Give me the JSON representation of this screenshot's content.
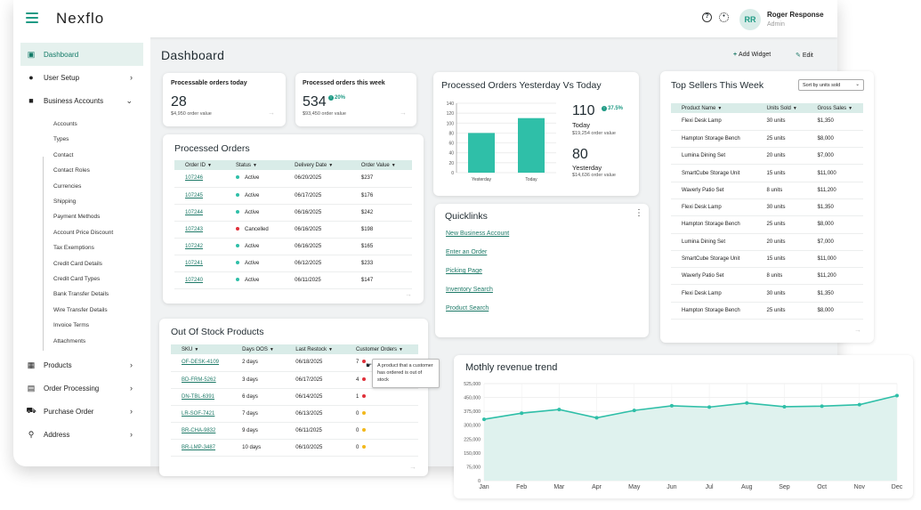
{
  "app": {
    "brand": "Nexflo",
    "user_name": "Roger Response",
    "user_role": "Admin",
    "user_initials": "RR"
  },
  "sidebar": {
    "items": [
      {
        "label": "Dashboard"
      },
      {
        "label": "User Setup"
      },
      {
        "label": "Business Accounts"
      },
      {
        "label": "Products"
      },
      {
        "label": "Order Processing"
      },
      {
        "label": "Purchase Order"
      },
      {
        "label": "Address"
      }
    ],
    "sub_items": [
      "Accounts",
      "Types",
      "Contact",
      "Contact Roles",
      "Currencies",
      "Shipping",
      "Payment Methods",
      "Account Price Discount",
      "Tax Exemptions",
      "Credit Card Details",
      "Credit Card Types",
      "Bank Transfer Details",
      "Wire Transfer Details",
      "Invoice Terms",
      "Attachments"
    ]
  },
  "header": {
    "title": "Dashboard",
    "add_widget": "Add Widget",
    "edit": "Edit"
  },
  "processable": {
    "label": "Processable orders today",
    "value": "28",
    "sub": "$4,950 order value"
  },
  "processed_week": {
    "label": "Processed orders this week",
    "value": "534",
    "change": "20%",
    "sub": "$93,450 order value"
  },
  "yesterday_today": {
    "title": "Processed Orders Yesterday Vs Today",
    "today_value": "110",
    "today_change": "37.5%",
    "today_label": "Today",
    "today_sub": "$19,254 order value",
    "yesterday_value": "80",
    "yesterday_label": "Yesterday",
    "yesterday_sub": "$14,636 order value"
  },
  "processed_orders": {
    "title": "Processed Orders",
    "columns": [
      "Order ID",
      "Status",
      "Delivery Date",
      "Order Value"
    ],
    "rows": [
      {
        "id": "107246",
        "status": "Active",
        "date": "06/20/2025",
        "value": "$237"
      },
      {
        "id": "107245",
        "status": "Active",
        "date": "06/17/2025",
        "value": "$176"
      },
      {
        "id": "107244",
        "status": "Active",
        "date": "06/16/2025",
        "value": "$242"
      },
      {
        "id": "107243",
        "status": "Cancelled",
        "date": "06/16/2025",
        "value": "$198"
      },
      {
        "id": "107242",
        "status": "Active",
        "date": "06/16/2025",
        "value": "$165"
      },
      {
        "id": "107241",
        "status": "Active",
        "date": "06/12/2025",
        "value": "$233"
      },
      {
        "id": "107240",
        "status": "Active",
        "date": "06/11/2025",
        "value": "$147"
      }
    ]
  },
  "quicklinks": {
    "title": "Quicklinks",
    "links": [
      "New Business Account",
      "Enter an Order",
      "Picking Page",
      "Inventory Search",
      "Product Search"
    ]
  },
  "top_sellers": {
    "title": "Top Sellers This Week",
    "sort_label": "Sort by units sold",
    "columns": [
      "Product Name",
      "Units Sold",
      "Gross Sales"
    ],
    "rows": [
      {
        "name": "Flexi Desk Lamp",
        "units": "30 units",
        "sales": "$1,350"
      },
      {
        "name": "Hampton Storage Bench",
        "units": "25 units",
        "sales": "$8,000"
      },
      {
        "name": "Lumina Dining Set",
        "units": "20 units",
        "sales": "$7,000"
      },
      {
        "name": "SmartCube Storage Unit",
        "units": "15 units",
        "sales": "$11,000"
      },
      {
        "name": "Waverly Patio Set",
        "units": "8 units",
        "sales": "$11,200"
      },
      {
        "name": "Flexi Desk Lamp",
        "units": "30 units",
        "sales": "$1,350"
      },
      {
        "name": "Hampton Storage Bench",
        "units": "25 units",
        "sales": "$8,000"
      },
      {
        "name": "Lumina Dining Set",
        "units": "20 units",
        "sales": "$7,000"
      },
      {
        "name": "SmartCube Storage Unit",
        "units": "15 units",
        "sales": "$11,000"
      },
      {
        "name": "Waverly Patio Set",
        "units": "8 units",
        "sales": "$11,200"
      },
      {
        "name": "Flexi Desk Lamp",
        "units": "30 units",
        "sales": "$1,350"
      },
      {
        "name": "Hampton Storage Bench",
        "units": "25 units",
        "sales": "$8,000"
      }
    ]
  },
  "out_of_stock": {
    "title": "Out Of Stock Products",
    "columns": [
      "SKU",
      "Days OOS",
      "Last Restock",
      "Customer Orders"
    ],
    "rows": [
      {
        "sku": "OF-DESK-4109",
        "days": "2 days",
        "restock": "06/18/2025",
        "orders": "7",
        "level": "red"
      },
      {
        "sku": "BD-FRM-5262",
        "days": "3 days",
        "restock": "06/17/2025",
        "orders": "4",
        "level": "red"
      },
      {
        "sku": "DN-TBL-6391",
        "days": "6 days",
        "restock": "06/14/2025",
        "orders": "1",
        "level": "red"
      },
      {
        "sku": "LR-SOF-7421",
        "days": "7 days",
        "restock": "06/13/2025",
        "orders": "0",
        "level": "yellow"
      },
      {
        "sku": "BR-CHA-9832",
        "days": "9 days",
        "restock": "06/11/2025",
        "orders": "0",
        "level": "yellow"
      },
      {
        "sku": "BR-LMP-3487",
        "days": "10 days",
        "restock": "06/10/2025",
        "orders": "0",
        "level": "yellow"
      }
    ],
    "tooltip": "A product that a customer has ordered is out of stock"
  },
  "colors": {
    "accent": "#2fbfa8",
    "link": "#1e7a68",
    "header_fill": "#d9ece8",
    "red": "#e0303a",
    "yellow": "#f2b81c"
  },
  "chart_data": [
    {
      "type": "bar",
      "categories": [
        "Yesterday",
        "Today"
      ],
      "values": [
        80,
        110
      ],
      "title": "Processed Orders Yesterday Vs Today",
      "ylim": [
        0,
        140
      ],
      "yticks": [
        0,
        20,
        40,
        60,
        80,
        100,
        120,
        140
      ],
      "grid": true
    },
    {
      "type": "area",
      "title": "Mothly revenue trend",
      "categories": [
        "Jan",
        "Feb",
        "Mar",
        "Apr",
        "May",
        "Jun",
        "Jul",
        "Aug",
        "Sep",
        "Oct",
        "Nov",
        "Dec"
      ],
      "values": [
        332000,
        365000,
        385000,
        340000,
        380000,
        405000,
        398000,
        420000,
        400000,
        403000,
        411000,
        460000
      ],
      "ylim": [
        0,
        525000
      ],
      "yticks": [
        "0",
        "75,000",
        "150,000",
        "225,000",
        "300,000",
        "375,000",
        "450,000",
        "525,000"
      ],
      "grid": true
    }
  ]
}
